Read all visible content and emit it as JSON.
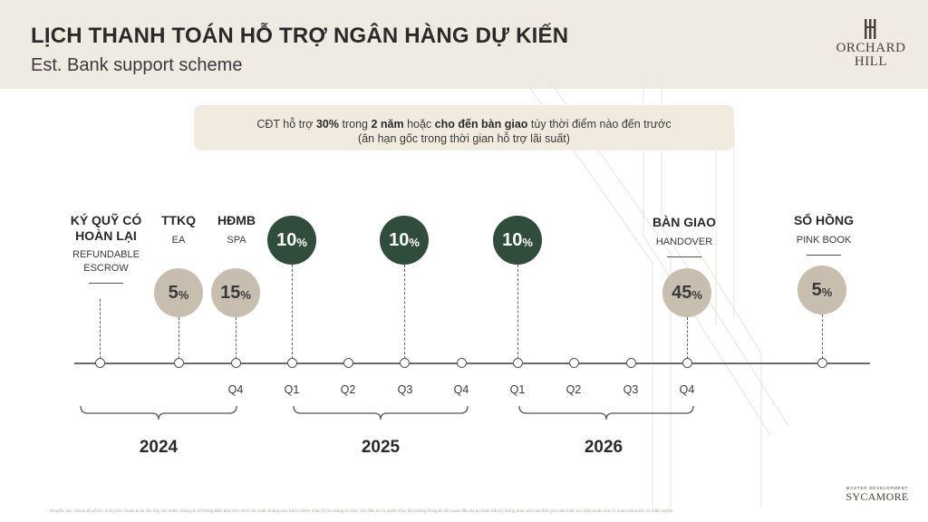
{
  "header": {
    "title": "LỊCH THANH TOÁN HỖ TRỢ NGÂN HÀNG DỰ KIẾN",
    "subtitle": "Est. Bank support scheme"
  },
  "logo": {
    "line1": "ORCHARD",
    "line2": "HILL"
  },
  "note": {
    "l1_a": "CĐT hỗ trợ ",
    "l1_b": "30%",
    "l1_c": " trong ",
    "l1_d": "2 năm",
    "l1_e": " hoặc ",
    "l1_f": "cho đến bàn giao",
    "l1_g": " tùy thời điểm nào đến trước",
    "l2": "(ân hạn gốc trong thời gian hỗ trợ lãi suất)"
  },
  "milestones": {
    "escrow": {
      "vn1": "KÝ QUỸ CÓ",
      "vn2": "HOÀN LẠI",
      "en1": "REFUNDABLE",
      "en2": "ESCROW"
    },
    "ttkq": {
      "vn": "TTKQ",
      "en": "EA"
    },
    "hdmb": {
      "vn": "HĐMB",
      "en": "SPA"
    },
    "handover": {
      "vn": "BÀN GIAO",
      "en": "HANDOVER"
    },
    "pinkbook": {
      "vn": "SỔ HỒNG",
      "en": "PINK BOOK"
    }
  },
  "payments": {
    "ea": {
      "value": "5",
      "unit": "%"
    },
    "spa": {
      "value": "15",
      "unit": "%"
    },
    "p1": {
      "value": "10",
      "unit": "%"
    },
    "p2": {
      "value": "10",
      "unit": "%"
    },
    "p3": {
      "value": "10",
      "unit": "%"
    },
    "handover": {
      "value": "45",
      "unit": "%"
    },
    "pinkbook": {
      "value": "5",
      "unit": "%"
    }
  },
  "quarters": [
    "Q4",
    "Q1",
    "Q2",
    "Q3",
    "Q4",
    "Q1",
    "Q2",
    "Q3",
    "Q4"
  ],
  "years": [
    "2024",
    "2025",
    "2026"
  ],
  "footer": {
    "disclaimer": "Khuyến cáo: Chúng tôi nỗ lực trong việc chuẩn bị tài liệu này, tuy nhiên chúng tôi sẽ không đảm bảo tính chính xác hoặc không chịu trách nhiệm pháp lý cho thông tin trên. Chủ đầu tư có quyền thay đổi những thông tin liên quan đến dự án hoặc bất kỳ những phát sinh nào theo yêu cầu hoặc sự chấp thuận của cơ quan nhà nước có thẩm quyền.",
    "dev_label": "MASTER DEVELOPMENT",
    "dev_name": "SYCAMORE"
  },
  "colors": {
    "green": "#2f4d3a",
    "beige": "#c8beb0",
    "band": "#efebe3"
  }
}
